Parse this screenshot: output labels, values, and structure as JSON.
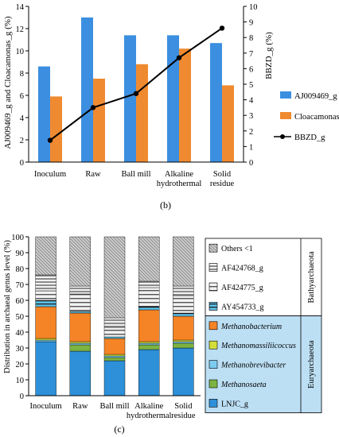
{
  "chart_data": [
    {
      "type": "bar",
      "subtitle": "(b)",
      "categories": [
        "Inoculum",
        "Raw",
        "Ball mill",
        "Alkaline hydrothermal",
        "Solid residue"
      ],
      "category_lines": [
        [
          "Inoculum"
        ],
        [
          "Raw"
        ],
        [
          "Ball mill"
        ],
        [
          "Alkaline",
          "hydrothermal"
        ],
        [
          "Solid",
          "residue"
        ]
      ],
      "ylabel": "AJ009469_g and Cloacamonas_g (%)",
      "y2label": "BBZD_g (%)",
      "ylim": [
        0,
        14
      ],
      "yticks": [
        0,
        2,
        4,
        6,
        8,
        10,
        12,
        14
      ],
      "y2lim": [
        0,
        10
      ],
      "y2ticks": [
        0,
        1,
        2,
        3,
        4,
        5,
        6,
        7,
        8,
        9,
        10
      ],
      "grid": false,
      "legend_position": "right",
      "series": [
        {
          "name": "AJ009469_g",
          "kind": "bar",
          "axis": "left",
          "color": "#3c8fe0",
          "values": [
            8.6,
            13.0,
            11.4,
            11.4,
            10.7
          ]
        },
        {
          "name": "Cloacamonas_g",
          "kind": "bar",
          "axis": "left",
          "color": "#f08a30",
          "values": [
            5.9,
            7.5,
            8.8,
            10.2,
            6.9
          ]
        },
        {
          "name": "BBZD_g",
          "kind": "line",
          "axis": "right",
          "color": "#000000",
          "values": [
            1.4,
            3.5,
            4.4,
            6.7,
            8.6
          ]
        }
      ]
    },
    {
      "type": "bar",
      "stacked": true,
      "subtitle": "(c)",
      "categories": [
        "Inoculum",
        "Raw",
        "Ball mill",
        "Alkaline hydrothermal",
        "Solid residue"
      ],
      "category_lines": [
        [
          "Inoculum"
        ],
        [
          "Raw"
        ],
        [
          "Ball mill"
        ],
        [
          "Alkaline",
          "hydrothermal"
        ],
        [
          "Solid",
          "residue"
        ]
      ],
      "ylabel": "Distribution in archaeal genus level (%)",
      "ylim": [
        0,
        100
      ],
      "yticks": [
        0,
        10,
        20,
        30,
        40,
        50,
        60,
        70,
        80,
        90,
        100
      ],
      "legend_position": "right",
      "series": [
        {
          "name": "LNJC_g",
          "color": "#2d90d8",
          "italic": false,
          "values": [
            34,
            28,
            22,
            29,
            30
          ]
        },
        {
          "name": "Methanosaeta",
          "color": "#7cb342",
          "italic": true,
          "values": [
            0,
            4,
            2,
            3,
            3
          ]
        },
        {
          "name": "Methanobrevibacter",
          "color": "#7ecbf0",
          "italic": true,
          "values": [
            1,
            1,
            1,
            1,
            1
          ]
        },
        {
          "name": "Methanomassiliicoccus",
          "color": "#d4de3a",
          "italic": true,
          "values": [
            1,
            1,
            1,
            1,
            1
          ]
        },
        {
          "name": "Methanobacterium",
          "color": "#f58426",
          "italic": true,
          "values": [
            20,
            18,
            10,
            20,
            15
          ]
        },
        {
          "name": "AY454733_g",
          "color": "#70c8e8",
          "italic": false,
          "values": [
            4,
            1,
            1,
            2,
            2
          ]
        },
        {
          "name": "AF424775_g",
          "color": "#c8c8c8",
          "italic": false,
          "values": [
            6,
            11,
            6,
            12,
            11
          ]
        },
        {
          "name": "AF424768_g",
          "color": "#e8e8e8",
          "italic": false,
          "values": [
            10,
            5,
            6,
            4,
            6
          ]
        },
        {
          "name": "Others <1",
          "color": "#808080",
          "italic": false,
          "values": [
            24,
            31,
            51,
            28,
            31
          ]
        }
      ],
      "groups": [
        {
          "name": "Bathyarchaeota",
          "members": [
            "Others <1",
            "AF424768_g",
            "AF424775_g",
            "AY454733_g"
          ]
        },
        {
          "name": "Euryarchaeota",
          "members": [
            "Methanobacterium",
            "Methanomassiliicoccus",
            "Methanobrevibacter",
            "Methanosaeta",
            "LNJC_g"
          ]
        }
      ],
      "legend_order": [
        "Others <1",
        "AF424768_g",
        "AF424775_g",
        "AY454733_g",
        "Methanobacterium",
        "Methanomassiliicoccus",
        "Methanobrevibacter",
        "Methanosaeta",
        "LNJC_g"
      ]
    }
  ]
}
